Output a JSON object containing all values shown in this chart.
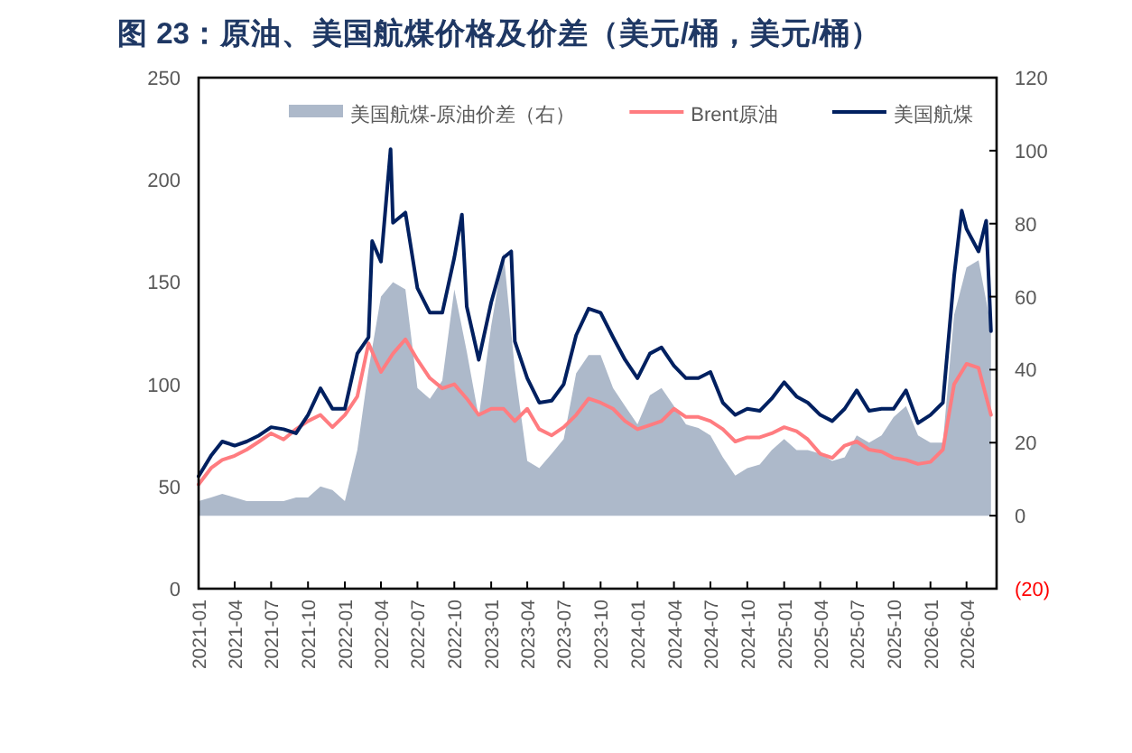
{
  "chart_data": {
    "type": "line",
    "title": "图 23：原油、美国航煤价格及价差（美元/桶，美元/桶）",
    "x": [
      "2021-01",
      "2021-02",
      "2021-03",
      "2021-04",
      "2021-05",
      "2021-06",
      "2021-07",
      "2021-08",
      "2021-09",
      "2021-10",
      "2021-11",
      "2021-12",
      "2022-01",
      "2022-02",
      "2022-03",
      "2022-04",
      "2022-05",
      "2022-06",
      "2022-07",
      "2022-08",
      "2022-09",
      "2022-10",
      "2022-11",
      "2022-12",
      "2023-01",
      "2023-02",
      "2023-03",
      "2023-04",
      "2023-05",
      "2023-06",
      "2023-07",
      "2023-08",
      "2023-09",
      "2023-10",
      "2023-11",
      "2023-12",
      "2024-01",
      "2024-02",
      "2024-03",
      "2024-04",
      "2024-05",
      "2024-06",
      "2024-07",
      "2024-08",
      "2024-09",
      "2024-10",
      "2024-11",
      "2024-12",
      "2025-01",
      "2025-02",
      "2025-03",
      "2025-04",
      "2025-05",
      "2025-06",
      "2025-07",
      "2025-08",
      "2025-09",
      "2025-10",
      "2025-11",
      "2025-12",
      "2026-01",
      "2026-02",
      "2026-03",
      "2026-04",
      "2026-05",
      "2026-06"
    ],
    "series": [
      {
        "name": "美国航煤-原油价差（右）",
        "type": "area",
        "axis": "y2",
        "color": "#adb9ca",
        "values": [
          4,
          5,
          6,
          5,
          4,
          4,
          4,
          4,
          5,
          5,
          8,
          7,
          4,
          18,
          40,
          60,
          64,
          62,
          35,
          32,
          37,
          62,
          45,
          27,
          52,
          72,
          40,
          15,
          13,
          17,
          21,
          39,
          44,
          44,
          35,
          30,
          25,
          33,
          35,
          30,
          25,
          24,
          22,
          16,
          11,
          13,
          14,
          18,
          21,
          18,
          18,
          17,
          15,
          16,
          22,
          20,
          22,
          27,
          30,
          22,
          20,
          20,
          55,
          68,
          70,
          52
        ]
      },
      {
        "name": "Brent原油",
        "type": "line",
        "color": "#ff7c80",
        "values": [
          51,
          59,
          63,
          65,
          68,
          72,
          76,
          73,
          78,
          82,
          85,
          79,
          85,
          94,
          120,
          106,
          115,
          122,
          112,
          103,
          98,
          100,
          93,
          85,
          88,
          88,
          82,
          88,
          78,
          75,
          79,
          85,
          93,
          91,
          88,
          82,
          78,
          80,
          82,
          88,
          84,
          84,
          82,
          78,
          72,
          74,
          74,
          76,
          79,
          77,
          73,
          66,
          64,
          70,
          72,
          68,
          67,
          64,
          63,
          61,
          62,
          68,
          100,
          110,
          108,
          85
        ]
      },
      {
        "name": "美国航煤",
        "type": "line",
        "color": "#002060",
        "x": [
          "2021-01",
          "2021-02",
          "2021-03",
          "2021-04",
          "2021-05",
          "2021-06",
          "2021-07",
          "2021-08",
          "2021-09",
          "2021-10",
          "2021-11",
          "2021-12",
          "2022-01",
          "2022-02",
          "2022-03",
          "2022-03-10",
          "2022-04",
          "2022-04-25",
          "2022-05",
          "2022-06",
          "2022-07",
          "2022-08",
          "2022-09",
          "2022-10",
          "2022-10-20",
          "2022-11",
          "2022-12",
          "2023-01",
          "2023-02",
          "2023-02-20",
          "2023-03",
          "2023-04",
          "2023-05",
          "2023-06",
          "2023-07",
          "2023-08",
          "2023-09",
          "2023-10",
          "2023-11",
          "2023-12",
          "2024-01",
          "2024-02",
          "2024-03",
          "2024-04",
          "2024-05",
          "2024-06",
          "2024-07",
          "2024-08",
          "2024-09",
          "2024-10",
          "2024-11",
          "2024-12",
          "2025-01",
          "2025-02",
          "2025-03",
          "2025-04",
          "2025-05",
          "2025-06",
          "2025-07",
          "2025-08",
          "2025-09",
          "2025-10",
          "2025-11",
          "2025-12",
          "2026-01",
          "2026-02",
          "2026-03",
          "2026-03-20",
          "2026-04",
          "2026-05",
          "2026-05-20",
          "2026-06"
        ],
        "values": [
          55,
          65,
          72,
          70,
          72,
          75,
          79,
          78,
          76,
          85,
          98,
          88,
          88,
          115,
          123,
          170,
          160,
          215,
          179,
          184,
          147,
          135,
          135,
          162,
          183,
          138,
          112,
          140,
          162,
          165,
          121,
          103,
          91,
          92,
          100,
          124,
          137,
          135,
          123,
          112,
          103,
          115,
          118,
          109,
          103,
          103,
          106,
          91,
          85,
          88,
          87,
          93,
          101,
          94,
          91,
          85,
          82,
          88,
          97,
          87,
          88,
          88,
          97,
          81,
          85,
          91,
          153,
          185,
          176,
          165,
          180,
          126
        ]
      }
    ],
    "xlim": [
      "2021-01",
      "2026-06-15"
    ],
    "xticks": [
      "2021-01",
      "2021-04",
      "2021-07",
      "2021-10",
      "2022-01",
      "2022-04",
      "2022-07",
      "2022-10",
      "2023-01",
      "2023-04",
      "2023-07",
      "2023-10",
      "2024-01",
      "2024-04",
      "2024-07",
      "2024-10",
      "2025-01",
      "2025-04",
      "2025-07",
      "2025-10",
      "2026-01",
      "2026-04"
    ],
    "ylim": [
      0,
      250
    ],
    "yticks": [
      0,
      50,
      100,
      150,
      200,
      250
    ],
    "y2lim": [
      -20,
      120
    ],
    "y2ticks": [
      {
        "value": -20,
        "label": "(20)"
      },
      0,
      20,
      40,
      60,
      80,
      100,
      120
    ],
    "legend": "top",
    "grid": false
  }
}
